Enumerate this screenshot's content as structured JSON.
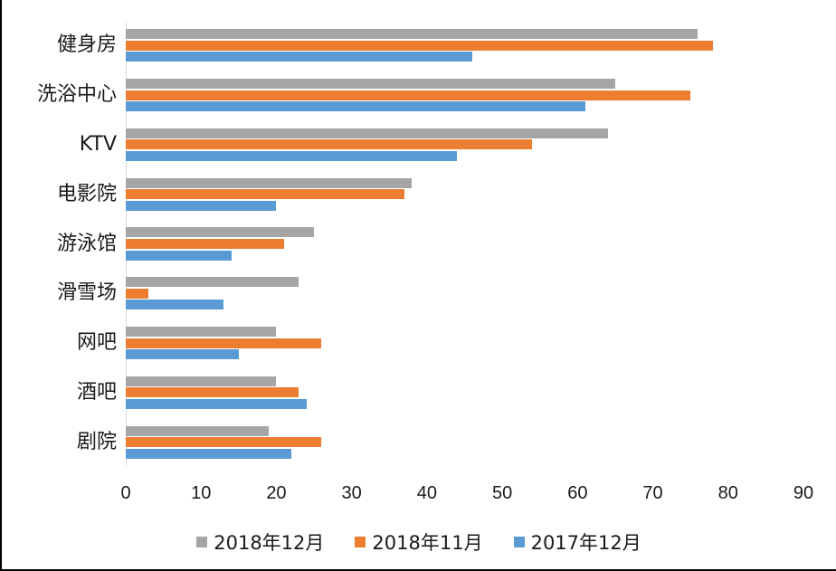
{
  "chart_data": {
    "type": "bar",
    "orientation": "horizontal",
    "title": "",
    "xlabel": "",
    "ylabel": "",
    "categories": [
      "健身房",
      "洗浴中心",
      "KTV",
      "电影院",
      "游泳馆",
      "滑雪场",
      "网吧",
      "酒吧",
      "剧院"
    ],
    "series": [
      {
        "name": "2018年12月",
        "color": "#A5A5A5",
        "values": [
          76,
          65,
          64,
          38,
          25,
          23,
          20,
          20,
          19
        ]
      },
      {
        "name": "2018年11月",
        "color": "#ED7D31",
        "values": [
          78,
          75,
          54,
          37,
          21,
          3,
          26,
          23,
          26
        ]
      },
      {
        "name": "2017年12月",
        "color": "#5B9BD5",
        "values": [
          46,
          61,
          44,
          20,
          14,
          13,
          15,
          24,
          22
        ]
      }
    ],
    "xlim": [
      0,
      90
    ],
    "x_ticks": [
      0,
      10,
      20,
      30,
      40,
      50,
      60,
      70,
      80,
      90
    ],
    "legend_position": "bottom",
    "grid": false
  },
  "colors": {
    "axis_line": "#d9d9d9",
    "text": "#1a1a1a",
    "frame_border": "#000000",
    "background": "#ffffff"
  }
}
